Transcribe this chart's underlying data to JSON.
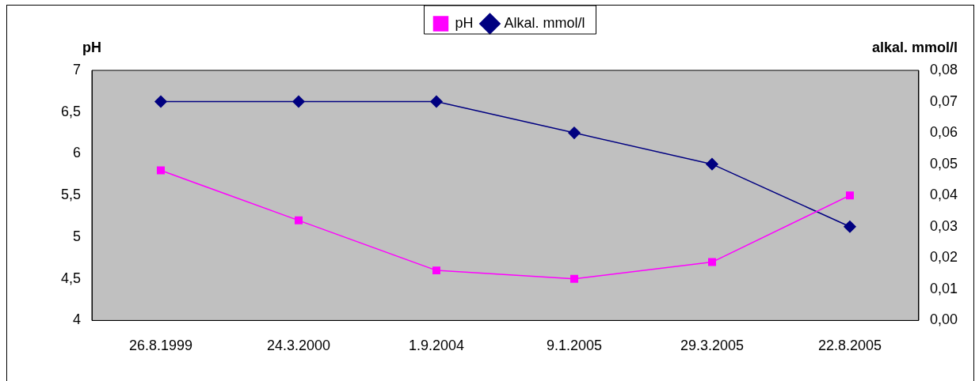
{
  "chart_data": {
    "type": "line",
    "ylabel": "pH",
    "y2label": "alkal. mmol/l",
    "categories": [
      "26.8.1999",
      "24.3.2000",
      "1.9.2004",
      "9.1.2005",
      "29.3.2005",
      "22.8.2005"
    ],
    "series": [
      {
        "name": "pH",
        "color": "#ff00ff",
        "marker": "square",
        "values": [
          5.8,
          5.2,
          4.6,
          4.5,
          4.7,
          5.5
        ]
      },
      {
        "name": "Alkal. mmol/l",
        "color": "#000080",
        "marker": "diamond",
        "axis": "y2",
        "values": [
          0.07,
          0.07,
          0.07,
          0.06,
          0.05,
          0.03
        ]
      }
    ],
    "ylim": [
      4,
      7
    ],
    "yticks": [
      4,
      {
        "value": 4.5,
        "label": "4,5"
      },
      5,
      {
        "value": 5.5,
        "label": "5,5"
      },
      6,
      {
        "value": 6.5,
        "label": "6,5"
      },
      7
    ],
    "y2lim": [
      0,
      0.08
    ],
    "y2ticks": [
      {
        "value": 0,
        "label": "0,00"
      },
      {
        "value": 0.01,
        "label": "0,01"
      },
      {
        "value": 0.02,
        "label": "0,02"
      },
      {
        "value": 0.03,
        "label": "0,03"
      },
      {
        "value": 0.04,
        "label": "0,04"
      },
      {
        "value": 0.05,
        "label": "0,05"
      },
      {
        "value": 0.06,
        "label": "0,06"
      },
      {
        "value": 0.07,
        "label": "0,07"
      },
      {
        "value": 0.08,
        "label": "0,08"
      }
    ],
    "grid": false,
    "legend": "top"
  }
}
